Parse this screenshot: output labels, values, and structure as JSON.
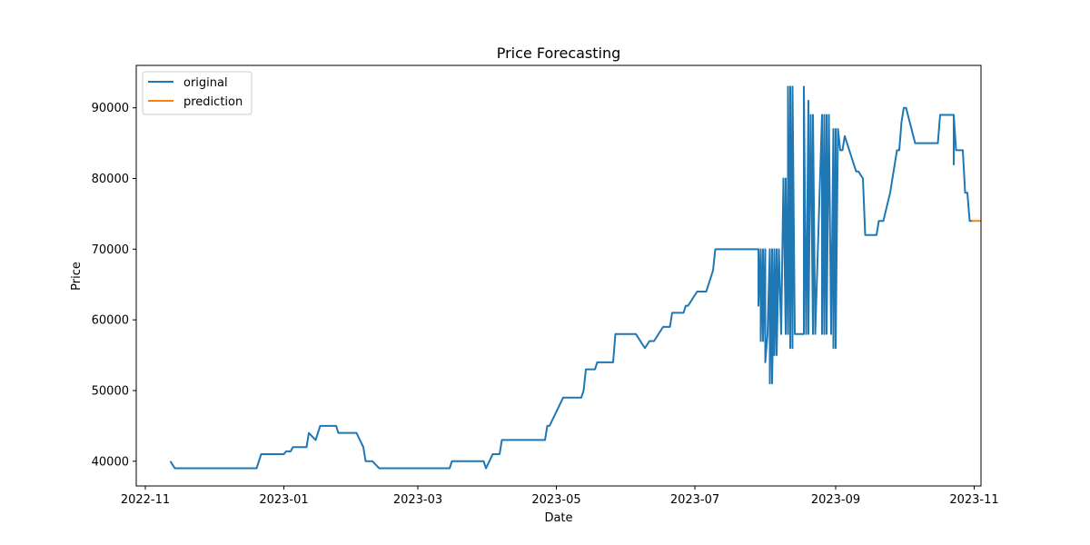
{
  "chart_data": {
    "type": "line",
    "title": "Price Forecasting",
    "xlabel": "Date",
    "ylabel": "Price",
    "x_is_date": true,
    "xlim": [
      "2022-10-28",
      "2023-11-04"
    ],
    "ylim": [
      36500,
      96000
    ],
    "x_ticks": [
      "2022-11-01",
      "2023-01-01",
      "2023-03-01",
      "2023-05-01",
      "2023-07-01",
      "2023-09-01",
      "2023-11-01"
    ],
    "x_tick_labels": [
      "2022-11",
      "2023-01",
      "2023-03",
      "2023-05",
      "2023-07",
      "2023-09",
      "2023-11"
    ],
    "y_ticks": [
      40000,
      50000,
      60000,
      70000,
      80000,
      90000
    ],
    "y_tick_labels": [
      "40000",
      "50000",
      "60000",
      "70000",
      "80000",
      "90000"
    ],
    "grid": false,
    "legend_position": "top-left",
    "series": [
      {
        "name": "original",
        "color": "#1f77b4",
        "points": [
          [
            "2022-11-12",
            40000
          ],
          [
            "2022-11-14",
            39000
          ],
          [
            "2022-12-20",
            39000
          ],
          [
            "2022-12-22",
            41000
          ],
          [
            "2022-12-31",
            41000
          ],
          [
            "2023-01-01",
            41000
          ],
          [
            "2023-01-02",
            41400
          ],
          [
            "2023-01-04",
            41400
          ],
          [
            "2023-01-05",
            42000
          ],
          [
            "2023-01-11",
            42000
          ],
          [
            "2023-01-12",
            44000
          ],
          [
            "2023-01-15",
            43000
          ],
          [
            "2023-01-17",
            45000
          ],
          [
            "2023-01-24",
            45000
          ],
          [
            "2023-01-25",
            44000
          ],
          [
            "2023-02-02",
            44000
          ],
          [
            "2023-02-05",
            42000
          ],
          [
            "2023-02-06",
            40000
          ],
          [
            "2023-02-09",
            40000
          ],
          [
            "2023-02-12",
            39000
          ],
          [
            "2023-03-15",
            39000
          ],
          [
            "2023-03-16",
            40000
          ],
          [
            "2023-03-30",
            40000
          ],
          [
            "2023-03-31",
            39000
          ],
          [
            "2023-04-03",
            41000
          ],
          [
            "2023-04-06",
            41000
          ],
          [
            "2023-04-07",
            43000
          ],
          [
            "2023-04-26",
            43000
          ],
          [
            "2023-04-27",
            45000
          ],
          [
            "2023-04-28",
            45000
          ],
          [
            "2023-05-04",
            49000
          ],
          [
            "2023-05-12",
            49000
          ],
          [
            "2023-05-13",
            50000
          ],
          [
            "2023-05-14",
            53000
          ],
          [
            "2023-05-18",
            53000
          ],
          [
            "2023-05-19",
            54000
          ],
          [
            "2023-05-26",
            54000
          ],
          [
            "2023-05-27",
            58000
          ],
          [
            "2023-06-05",
            58000
          ],
          [
            "2023-06-09",
            56000
          ],
          [
            "2023-06-11",
            57000
          ],
          [
            "2023-06-13",
            57000
          ],
          [
            "2023-06-17",
            59000
          ],
          [
            "2023-06-20",
            59000
          ],
          [
            "2023-06-21",
            61000
          ],
          [
            "2023-06-26",
            61000
          ],
          [
            "2023-06-27",
            62000
          ],
          [
            "2023-06-28",
            62000
          ],
          [
            "2023-07-02",
            64000
          ],
          [
            "2023-07-06",
            64000
          ],
          [
            "2023-07-09",
            67000
          ],
          [
            "2023-07-10",
            70000
          ],
          [
            "2023-07-29",
            70000
          ],
          [
            "2023-07-29",
            62000
          ],
          [
            "2023-07-30",
            70000
          ],
          [
            "2023-07-30",
            57000
          ],
          [
            "2023-07-31",
            70000
          ],
          [
            "2023-07-31",
            57000
          ],
          [
            "2023-08-01",
            70000
          ],
          [
            "2023-08-01",
            54000
          ],
          [
            "2023-08-02",
            58000
          ],
          [
            "2023-08-03",
            70000
          ],
          [
            "2023-08-03",
            51000
          ],
          [
            "2023-08-04",
            70000
          ],
          [
            "2023-08-04",
            51000
          ],
          [
            "2023-08-05",
            70000
          ],
          [
            "2023-08-05",
            55000
          ],
          [
            "2023-08-06",
            70000
          ],
          [
            "2023-08-06",
            55000
          ],
          [
            "2023-08-07",
            70000
          ],
          [
            "2023-08-08",
            58000
          ],
          [
            "2023-08-09",
            80000
          ],
          [
            "2023-08-10",
            58000
          ],
          [
            "2023-08-10",
            80000
          ],
          [
            "2023-08-11",
            58000
          ],
          [
            "2023-08-11",
            93000
          ],
          [
            "2023-08-12",
            56000
          ],
          [
            "2023-08-12",
            93000
          ],
          [
            "2023-08-13",
            56000
          ],
          [
            "2023-08-13",
            93000
          ],
          [
            "2023-08-14",
            58000
          ],
          [
            "2023-08-18",
            58000
          ],
          [
            "2023-08-18",
            93000
          ],
          [
            "2023-08-19",
            58000
          ],
          [
            "2023-08-20",
            91000
          ],
          [
            "2023-08-20",
            58000
          ],
          [
            "2023-08-21",
            89000
          ],
          [
            "2023-08-22",
            58000
          ],
          [
            "2023-08-22",
            89000
          ],
          [
            "2023-08-23",
            58000
          ],
          [
            "2023-08-26",
            89000
          ],
          [
            "2023-08-26",
            58000
          ],
          [
            "2023-08-27",
            89000
          ],
          [
            "2023-08-27",
            58000
          ],
          [
            "2023-08-28",
            89000
          ],
          [
            "2023-08-28",
            58000
          ],
          [
            "2023-08-29",
            89000
          ],
          [
            "2023-08-30",
            58000
          ],
          [
            "2023-08-31",
            87000
          ],
          [
            "2023-08-31",
            56000
          ],
          [
            "2023-09-01",
            87000
          ],
          [
            "2023-09-01",
            56000
          ],
          [
            "2023-09-02",
            87000
          ],
          [
            "2023-09-03",
            84000
          ],
          [
            "2023-09-04",
            84000
          ],
          [
            "2023-09-05",
            86000
          ],
          [
            "2023-09-07",
            84000
          ],
          [
            "2023-09-10",
            81000
          ],
          [
            "2023-09-11",
            81000
          ],
          [
            "2023-09-13",
            80000
          ],
          [
            "2023-09-14",
            72000
          ],
          [
            "2023-09-19",
            72000
          ],
          [
            "2023-09-20",
            74000
          ],
          [
            "2023-09-22",
            74000
          ],
          [
            "2023-09-25",
            78000
          ],
          [
            "2023-09-28",
            84000
          ],
          [
            "2023-09-29",
            84000
          ],
          [
            "2023-09-30",
            88000
          ],
          [
            "2023-10-01",
            90000
          ],
          [
            "2023-10-02",
            90000
          ],
          [
            "2023-10-06",
            85000
          ],
          [
            "2023-10-16",
            85000
          ],
          [
            "2023-10-17",
            89000
          ],
          [
            "2023-10-23",
            89000
          ],
          [
            "2023-10-23",
            82000
          ],
          [
            "2023-10-23",
            89000
          ],
          [
            "2023-10-24",
            84000
          ],
          [
            "2023-10-27",
            84000
          ],
          [
            "2023-10-28",
            78000
          ],
          [
            "2023-10-29",
            78000
          ],
          [
            "2023-10-30",
            74000
          ],
          [
            "2023-10-31",
            74000
          ]
        ]
      },
      {
        "name": "prediction",
        "color": "#ff7f0e",
        "points": [
          [
            "2023-10-31",
            74000
          ],
          [
            "2023-11-01",
            74000
          ],
          [
            "2023-11-02",
            74000
          ],
          [
            "2023-11-03",
            74000
          ],
          [
            "2023-11-04",
            74000
          ]
        ]
      }
    ]
  }
}
